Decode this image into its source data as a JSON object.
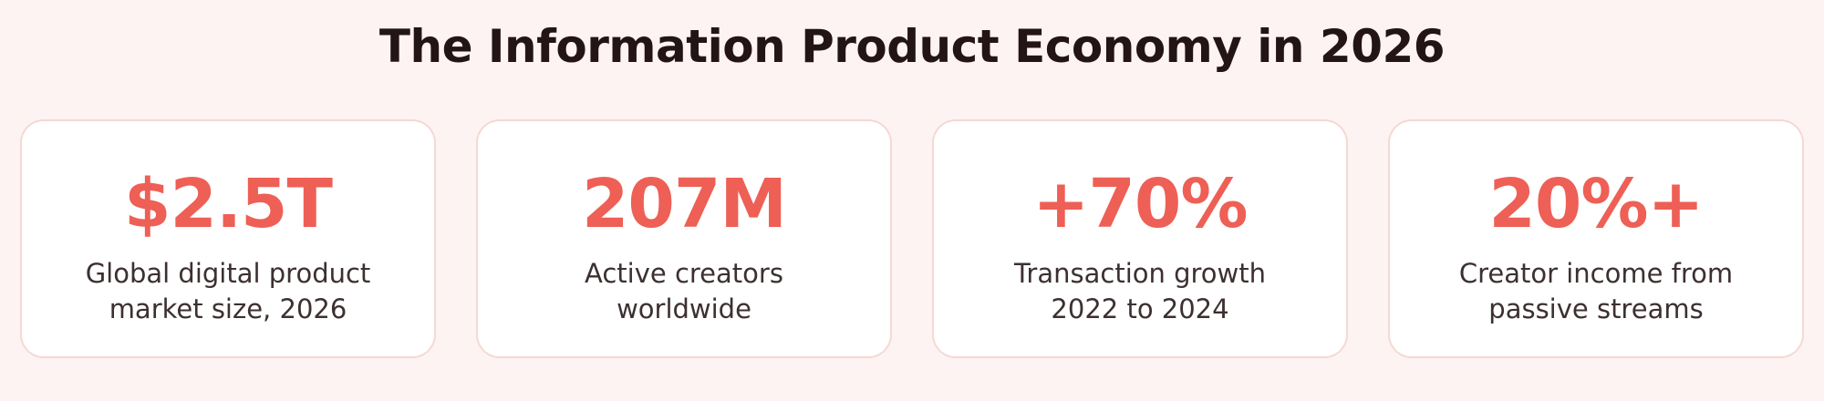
{
  "header": {
    "title": "The Information Product Economy in 2026"
  },
  "cards": [
    {
      "value": "$2.5T",
      "label_lines": [
        "Global digital product",
        "market size, 2026"
      ]
    },
    {
      "value": "207M",
      "label_lines": [
        "Active creators",
        "worldwide"
      ]
    },
    {
      "value": "+70%",
      "label_lines": [
        "Transaction growth",
        "2022 to 2024"
      ]
    },
    {
      "value": "20%+",
      "label_lines": [
        "Creator income from",
        "passive streams"
      ]
    }
  ]
}
